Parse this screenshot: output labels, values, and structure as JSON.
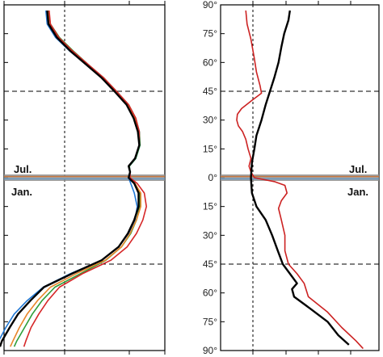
{
  "chart_data": [
    {
      "type": "line",
      "panel": "left",
      "title": "",
      "xlabel": "",
      "ylabel": "",
      "y_axis_note": "latitude, drawn as July hemisphere (top, 90°→0°) and January hemisphere (bottom, 0°→90°)",
      "ylim": [
        -90,
        90
      ],
      "xlim": [
        -1.0,
        1.0
      ],
      "reference_x": 0,
      "dashed_latitudes": [
        45,
        -45
      ],
      "grid": false,
      "legend": "none",
      "season_labels": {
        "upper": "Jul.",
        "lower": "Jan."
      },
      "series": [
        {
          "color": "#000000",
          "lat": [
            87,
            80,
            73,
            66,
            59,
            52,
            45,
            38,
            31,
            24,
            17,
            10,
            6,
            3,
            0,
            -3,
            -8,
            -15,
            -22,
            -29,
            -36,
            -43,
            -50,
            -57,
            -64,
            -71,
            -78,
            -85,
            -88
          ],
          "values": [
            -0.27,
            -0.25,
            -0.12,
            0.08,
            0.3,
            0.52,
            0.7,
            0.87,
            0.97,
            1.03,
            1.05,
            0.99,
            0.9,
            0.92,
            0.9,
            0.98,
            1.04,
            1.04,
            0.98,
            0.89,
            0.76,
            0.52,
            0.1,
            -0.32,
            -0.53,
            -0.72,
            -0.85,
            -0.97,
            -1.0
          ]
        },
        {
          "color": "#1f77d4",
          "lat": [
            87,
            80,
            73,
            66,
            59,
            52,
            45,
            38,
            31,
            24,
            17,
            10,
            6,
            3,
            0,
            -3,
            -8,
            -15,
            -22,
            -29,
            -36,
            -43,
            -50,
            -57,
            -64,
            -71,
            -78,
            -85,
            -88
          ],
          "values": [
            -0.29,
            -0.27,
            -0.14,
            0.07,
            0.3,
            0.53,
            0.72,
            0.89,
            0.99,
            1.05,
            1.06,
            1.0,
            0.91,
            0.92,
            0.9,
            0.93,
            0.98,
            1.02,
            0.99,
            0.9,
            0.76,
            0.52,
            0.08,
            -0.33,
            -0.58,
            -0.78,
            -0.91,
            -1.02,
            -1.05
          ]
        },
        {
          "color": "#2e9e3a",
          "lat": [
            87,
            80,
            73,
            66,
            59,
            52,
            45,
            38,
            31,
            24,
            17,
            10,
            6,
            3,
            0,
            -3,
            -8,
            -15,
            -22,
            -29,
            -36,
            -43,
            -50,
            -57,
            -64,
            -71,
            -78,
            -85,
            -88
          ],
          "values": [
            -0.25,
            -0.22,
            -0.08,
            0.12,
            0.33,
            0.55,
            0.73,
            0.9,
            1.0,
            1.05,
            1.06,
            1.0,
            0.91,
            0.92,
            0.91,
            0.98,
            1.06,
            1.06,
            1.01,
            0.93,
            0.8,
            0.58,
            0.22,
            -0.15,
            -0.35,
            -0.5,
            -0.62,
            -0.74,
            -0.78
          ]
        },
        {
          "color": "#e8862a",
          "lat": [
            87,
            80,
            73,
            66,
            59,
            52,
            45,
            38,
            31,
            24,
            17,
            10,
            6,
            3,
            0,
            -3,
            -8,
            -15,
            -22,
            -29,
            -36,
            -43,
            -50,
            -57,
            -64,
            -71,
            -78,
            -85,
            -88
          ],
          "values": [
            -0.26,
            -0.24,
            -0.11,
            0.1,
            0.32,
            0.54,
            0.72,
            0.89,
            0.99,
            1.04,
            1.05,
            0.99,
            0.9,
            0.92,
            0.91,
            0.99,
            1.07,
            1.07,
            1.01,
            0.92,
            0.8,
            0.57,
            0.16,
            -0.22,
            -0.42,
            -0.58,
            -0.7,
            -0.8,
            -0.84
          ]
        },
        {
          "color": "#d62728",
          "lat": [
            87,
            80,
            73,
            66,
            59,
            52,
            45,
            38,
            31,
            24,
            17,
            10,
            6,
            3,
            0,
            -3,
            -8,
            -15,
            -22,
            -29,
            -36,
            -43,
            -50,
            -57,
            -64,
            -71,
            -78,
            -85,
            -88
          ],
          "values": [
            -0.24,
            -0.22,
            -0.09,
            0.11,
            0.33,
            0.55,
            0.73,
            0.9,
            1.0,
            1.05,
            1.05,
            0.99,
            0.9,
            0.92,
            0.92,
            1.02,
            1.12,
            1.15,
            1.1,
            1.01,
            0.88,
            0.65,
            0.25,
            -0.08,
            -0.26,
            -0.4,
            -0.52,
            -0.6,
            -0.63
          ]
        }
      ]
    },
    {
      "type": "line",
      "panel": "right",
      "title": "",
      "xlabel": "",
      "ylabel": "",
      "y_axis_note": "latitude, drawn as July hemisphere (top, 90°→0°) and January hemisphere (bottom, 0°→90°)",
      "ylim": [
        -90,
        90
      ],
      "xlim": [
        -1.0,
        1.0
      ],
      "reference_x": 0,
      "dashed_latitudes": [
        45,
        -45
      ],
      "grid": false,
      "legend": "none",
      "tick_labels": [
        "90°",
        "75°",
        "60°",
        "45°",
        "30°",
        "15°",
        "0°",
        "15°",
        "30°",
        "45°",
        "60°",
        "75°",
        "90°"
      ],
      "season_labels": {
        "upper": "Jul.",
        "lower": "Jan."
      },
      "series": [
        {
          "color": "#000000",
          "lat": [
            87,
            82,
            75,
            68,
            60,
            52,
            45,
            38,
            30,
            22,
            15,
            8,
            3,
            0,
            -3,
            -8,
            -15,
            -22,
            -30,
            -38,
            -45,
            -50,
            -55,
            -58,
            -62,
            -68,
            -75,
            -82,
            -87
          ],
          "values": [
            0.52,
            0.5,
            0.44,
            0.4,
            0.36,
            0.3,
            0.24,
            0.18,
            0.12,
            0.05,
            0.02,
            -0.03,
            -0.05,
            -0.06,
            -0.05,
            -0.03,
            0.05,
            0.18,
            0.27,
            0.35,
            0.42,
            0.52,
            0.62,
            0.55,
            0.58,
            0.8,
            1.05,
            1.2,
            1.35
          ]
        },
        {
          "color": "#cc2222",
          "lat": [
            87,
            80,
            72,
            62,
            55,
            48,
            44,
            40,
            36,
            33,
            30,
            27,
            24,
            20,
            15,
            10,
            6,
            3,
            0,
            -2,
            -4,
            -8,
            -12,
            -16,
            -22,
            -30,
            -38,
            -45,
            -50,
            -55,
            -62,
            -70,
            -78,
            -85,
            -89
          ],
          "values": [
            -0.22,
            -0.18,
            -0.06,
            0.02,
            0.05,
            0.1,
            0.12,
            -0.05,
            -0.35,
            -0.48,
            -0.5,
            -0.45,
            -0.32,
            -0.22,
            -0.15,
            -0.06,
            -0.12,
            -0.06,
            0.02,
            0.3,
            0.45,
            0.48,
            0.4,
            0.36,
            0.4,
            0.45,
            0.45,
            0.5,
            0.62,
            0.72,
            0.78,
            1.05,
            1.25,
            1.45,
            1.55
          ]
        }
      ]
    }
  ]
}
